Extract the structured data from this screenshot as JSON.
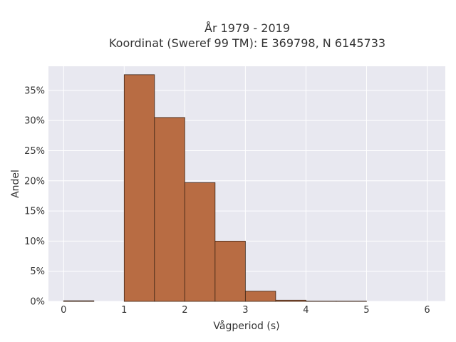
{
  "chart_data": {
    "type": "bar",
    "title_line1": "År 1979 - 2019",
    "title_line2": "Koordinat (Sweref 99 TM): E 369798, N 6145733",
    "xlabel": "Vågperiod (s)",
    "ylabel": "Andel",
    "xlim": [
      -0.25,
      6.3
    ],
    "ylim": [
      0,
      0.39
    ],
    "xticks": [
      0,
      1,
      2,
      3,
      4,
      5,
      6
    ],
    "xtick_labels": [
      "0",
      "1",
      "2",
      "3",
      "4",
      "5",
      "6"
    ],
    "yticks": [
      0,
      0.05,
      0.1,
      0.15,
      0.2,
      0.25,
      0.3,
      0.35
    ],
    "ytick_labels": [
      "0%",
      "5%",
      "10%",
      "15%",
      "20%",
      "25%",
      "30%",
      "35%"
    ],
    "bins": [
      {
        "x0": 0.0,
        "x1": 0.5,
        "value": 0.001
      },
      {
        "x0": 0.5,
        "x1": 1.0,
        "value": 0.0
      },
      {
        "x0": 1.0,
        "x1": 1.5,
        "value": 0.376
      },
      {
        "x0": 1.5,
        "x1": 2.0,
        "value": 0.305
      },
      {
        "x0": 2.0,
        "x1": 2.5,
        "value": 0.197
      },
      {
        "x0": 2.5,
        "x1": 3.0,
        "value": 0.1
      },
      {
        "x0": 3.0,
        "x1": 3.5,
        "value": 0.017
      },
      {
        "x0": 3.5,
        "x1": 4.0,
        "value": 0.002
      },
      {
        "x0": 4.0,
        "x1": 4.5,
        "value": 0.0005
      },
      {
        "x0": 4.5,
        "x1": 5.0,
        "value": 0.0005
      }
    ],
    "bar_color": "#b86c43",
    "grid": true,
    "plot_background": "#e8e8f0"
  }
}
